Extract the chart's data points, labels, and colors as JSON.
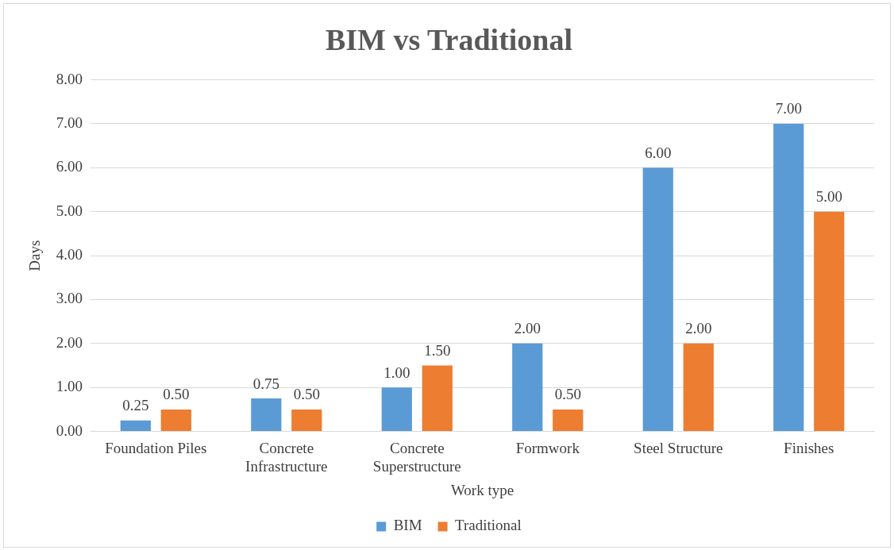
{
  "chart_data": {
    "type": "bar",
    "title": "BIM vs Traditional",
    "xlabel": "Work type",
    "ylabel": "Days",
    "categories": [
      "Foundation Piles",
      "Concrete Infrastructure",
      "Concrete Superstructure",
      "Formwork",
      "Steel Structure",
      "Finishes"
    ],
    "series": [
      {
        "name": "BIM",
        "color": "#5b9bd5",
        "values": [
          0.25,
          0.75,
          1,
          2,
          6,
          7
        ],
        "value_labels": [
          "0.25",
          "0.75",
          "1.00",
          "2.00",
          "6.00",
          "7.00"
        ]
      },
      {
        "name": "Traditional",
        "color": "#ed7d31",
        "values": [
          0.5,
          0.5,
          1.5,
          0.5,
          2,
          5
        ],
        "value_labels": [
          "0.50",
          "0.50",
          "1.50",
          "0.50",
          "2.00",
          "5.00"
        ]
      }
    ],
    "ylim": [
      0,
      8
    ],
    "yticks": [
      {
        "value": 0,
        "label": "0.00"
      },
      {
        "value": 1,
        "label": "1.00"
      },
      {
        "value": 2,
        "label": "2.00"
      },
      {
        "value": 3,
        "label": "3.00"
      },
      {
        "value": 4,
        "label": "4.00"
      },
      {
        "value": 5,
        "label": "5.00"
      },
      {
        "value": 6,
        "label": "6.00"
      },
      {
        "value": 7,
        "label": "7.00"
      },
      {
        "value": 8,
        "label": "8.00"
      }
    ],
    "grid": "y",
    "legend": "bottom"
  }
}
